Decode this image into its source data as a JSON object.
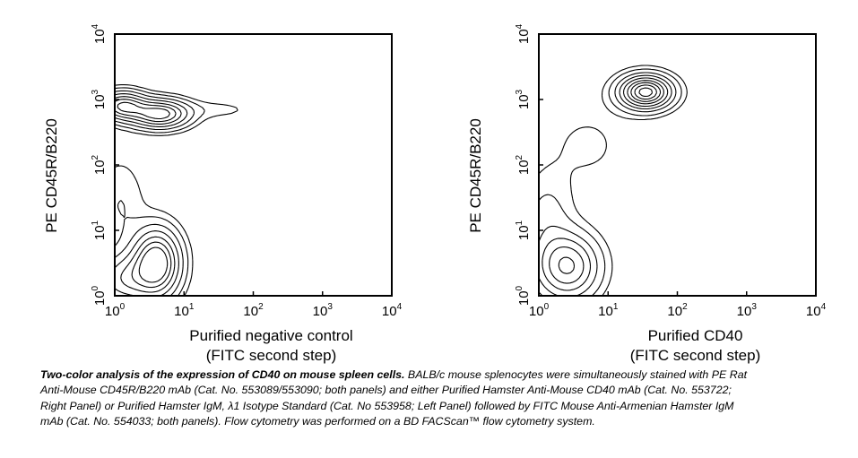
{
  "chart_data": [
    {
      "type": "contour",
      "xscale": "log",
      "yscale": "log",
      "xlim": [
        1,
        10000
      ],
      "ylim": [
        1,
        10000
      ],
      "xticks": [
        {
          "base": "10",
          "exp": "0"
        },
        {
          "base": "10",
          "exp": "1"
        },
        {
          "base": "10",
          "exp": "2"
        },
        {
          "base": "10",
          "exp": "3"
        },
        {
          "base": "10",
          "exp": "4"
        }
      ],
      "yticks": [
        {
          "base": "10",
          "exp": "0"
        },
        {
          "base": "10",
          "exp": "1"
        },
        {
          "base": "10",
          "exp": "2"
        },
        {
          "base": "10",
          "exp": "3"
        },
        {
          "base": "10",
          "exp": "4"
        }
      ],
      "xlabel": [
        "Purified negative control",
        "(FITC second step)"
      ],
      "ylabel": "PE CD45R/B220",
      "populations": [
        {
          "x": 1.4,
          "y": 1.8,
          "sx": 0.28,
          "sy": 0.25,
          "w": 0.45
        },
        {
          "x": 4.0,
          "y": 3.2,
          "sx": 0.22,
          "sy": 0.33,
          "w": 1.0
        },
        {
          "x": 4.5,
          "y": 600,
          "sx": 0.27,
          "sy": 0.14,
          "w": 0.9
        },
        {
          "x": 1.3,
          "y": 800,
          "sx": 0.22,
          "sy": 0.14,
          "w": 0.8
        },
        {
          "x": 1.2,
          "y": 25,
          "sx": 0.25,
          "sy": 0.5,
          "w": 0.12
        },
        {
          "x": 30,
          "y": 700,
          "sx": 0.4,
          "sy": 0.1,
          "w": 0.08
        }
      ],
      "levels": [
        0.06,
        0.12,
        0.22,
        0.35,
        0.5,
        0.65,
        0.8
      ]
    },
    {
      "type": "contour",
      "xscale": "log",
      "yscale": "log",
      "xlim": [
        1,
        10000
      ],
      "ylim": [
        1,
        10000
      ],
      "xticks": [
        {
          "base": "10",
          "exp": "0"
        },
        {
          "base": "10",
          "exp": "1"
        },
        {
          "base": "10",
          "exp": "2"
        },
        {
          "base": "10",
          "exp": "3"
        },
        {
          "base": "10",
          "exp": "4"
        }
      ],
      "yticks": [
        {
          "base": "10",
          "exp": "0"
        },
        {
          "base": "10",
          "exp": "1"
        },
        {
          "base": "10",
          "exp": "2"
        },
        {
          "base": "10",
          "exp": "3"
        },
        {
          "base": "10",
          "exp": "4"
        }
      ],
      "xlabel": [
        "Purified CD40",
        "(FITC second step)"
      ],
      "ylabel": "PE CD45R/B220",
      "populations": [
        {
          "x": 35,
          "y": 1300,
          "sx": 0.25,
          "sy": 0.17,
          "w": 1.0
        },
        {
          "x": 2.6,
          "y": 2.8,
          "sx": 0.3,
          "sy": 0.33,
          "w": 0.6
        },
        {
          "x": 1.3,
          "y": 15,
          "sx": 0.25,
          "sy": 0.45,
          "w": 0.15
        },
        {
          "x": 5,
          "y": 200,
          "sx": 0.5,
          "sy": 0.5,
          "w": 0.07
        }
      ],
      "levels": [
        0.06,
        0.12,
        0.22,
        0.33,
        0.45,
        0.58,
        0.7,
        0.82,
        0.93
      ]
    }
  ],
  "caption": {
    "bold": "Two-color analysis of the expression of CD40 on mouse spleen cells.",
    "text": " BALB/c mouse splenocytes were simultaneously stained with PE Rat Anti-Mouse CD45R/B220 mAb (Cat. No. 553089/553090; both panels) and either Purified Hamster Anti-Mouse CD40 mAb (Cat. No. 553722; Right Panel) or Purified Hamster IgM, λ1 Isotype Standard (Cat. No 553958; Left Panel) followed by FITC Mouse Anti-Armenian Hamster IgM mAb (Cat. No. 554033; both panels). Flow cytometry was performed on a BD FACScan™ flow cytometry system."
  }
}
